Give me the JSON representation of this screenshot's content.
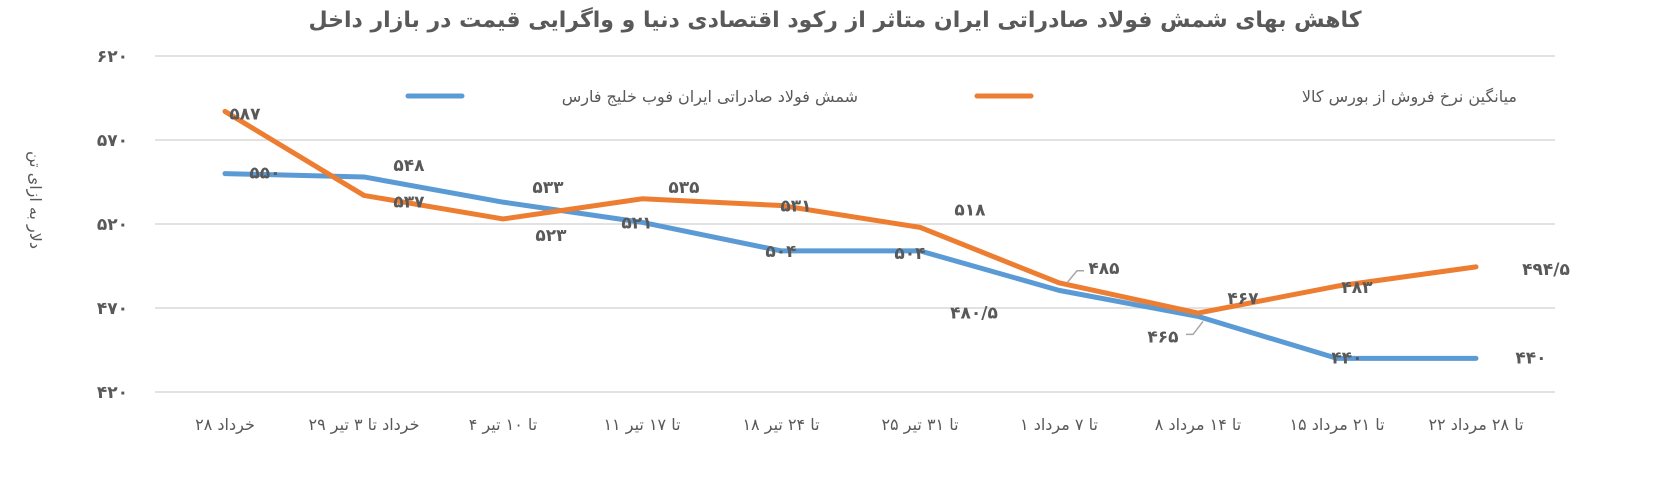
{
  "chart_data": {
    "type": "line",
    "title": "کاهش بهای شمش فولاد صادراتی ایران متاثر از رکود اقتصادی دنیا و واگرایی قیمت در بازار داخل",
    "ylabel": "دلار به ازای تن",
    "xlabel": "",
    "ylim": [
      420,
      620
    ],
    "yticks": [
      420,
      470,
      520,
      570,
      620
    ],
    "ytick_labels": [
      "۴۲۰",
      "۴۷۰",
      "۵۲۰",
      "۵۷۰",
      "۶۲۰"
    ],
    "grid": true,
    "legend": "top",
    "categories": [
      "۲۸ خرداد",
      "۲۹ خرداد تا ۳ تیر",
      "۴ تا ۱۰ تیر",
      "۱۱ تا ۱۷ تیر",
      "۱۸ تا ۲۴ تیر",
      "۲۵ تا ۳۱ تیر",
      "۱ تا ۷ مرداد",
      "۸ تا ۱۴ مرداد",
      "۱۵ تا ۲۱ مرداد",
      "۲۲ تا ۲۸ مرداد"
    ],
    "series": [
      {
        "name": "شمش فولاد صادراتی ایران فوب خلیج فارس",
        "color": "#5B9BD5",
        "values": [
          550,
          548,
          533,
          521,
          504,
          504,
          480.5,
          465,
          440,
          440
        ],
        "labels": [
          "۵۵۰",
          "۵۴۸",
          "۵۳۳",
          "۵۲۱",
          "۵۰۴",
          "۵۰۴",
          "۴۸۰/۵",
          "۴۶۵",
          "۴۴۰",
          "۴۴۰"
        ]
      },
      {
        "name": "میانگین نرخ فروش از بورس کالا",
        "color": "#ED7D31",
        "values": [
          587,
          537,
          523,
          535,
          531,
          518,
          485,
          467,
          483,
          494.5
        ],
        "labels": [
          "۵۸۷",
          "۵۳۷",
          "۵۲۳",
          "۵۳۵",
          "۵۳۱",
          "۵۱۸",
          "۴۸۵",
          "۴۶۷",
          "۴۸۳",
          "۴۹۴/۵"
        ]
      }
    ]
  }
}
